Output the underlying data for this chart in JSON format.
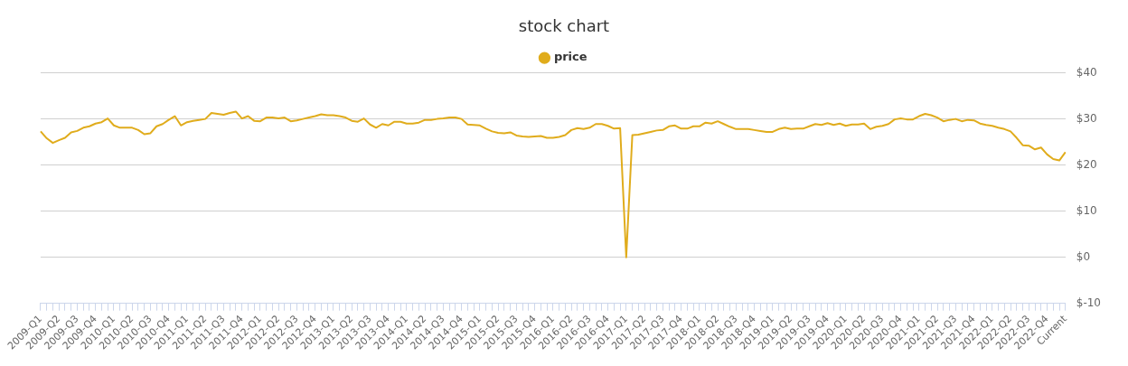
{
  "chart_data": {
    "type": "line",
    "title": "stock chart",
    "categories": [
      "2009-Q1",
      null,
      null,
      "2009-Q2",
      null,
      null,
      "2009-Q3",
      null,
      null,
      "2009-Q4",
      null,
      null,
      "2010-Q1",
      null,
      null,
      "2010-Q2",
      null,
      null,
      "2010-Q3",
      null,
      null,
      "2010-Q4",
      null,
      null,
      "2011-Q1",
      null,
      null,
      "2011-Q2",
      null,
      null,
      "2011-Q3",
      null,
      null,
      "2011-Q4",
      null,
      null,
      "2012-Q1",
      null,
      null,
      "2012-Q2",
      null,
      null,
      "2012-Q3",
      null,
      null,
      "2012-Q4",
      null,
      null,
      "2013-Q1",
      null,
      null,
      "2013-Q2",
      null,
      null,
      "2013-Q3",
      null,
      null,
      "2013-Q4",
      null,
      null,
      "2014-Q1",
      null,
      null,
      "2014-Q2",
      null,
      null,
      "2014-Q3",
      null,
      null,
      "2014-Q4",
      null,
      null,
      "2015-Q1",
      null,
      null,
      "2015-Q2",
      null,
      null,
      "2015-Q3",
      null,
      null,
      "2015-Q4",
      null,
      null,
      "2016-Q1",
      null,
      null,
      "2016-Q2",
      null,
      null,
      "2016-Q3",
      null,
      null,
      "2016-Q4",
      null,
      null,
      "2017-Q1",
      null,
      null,
      "2017-Q2",
      null,
      null,
      "2017-Q3",
      null,
      null,
      "2017-Q4",
      null,
      null,
      "2018-Q1",
      null,
      null,
      "2018-Q2",
      null,
      null,
      "2018-Q3",
      null,
      null,
      "2018-Q4",
      null,
      null,
      "2019-Q1",
      null,
      null,
      "2019-Q2",
      null,
      null,
      "2019-Q3",
      null,
      null,
      "2019-Q4",
      null,
      null,
      "2020-Q1",
      null,
      null,
      "2020-Q2",
      null,
      null,
      "2020-Q3",
      null,
      null,
      "2020-Q4",
      null,
      null,
      "2021-Q1",
      null,
      null,
      "2021-Q2",
      null,
      null,
      "2021-Q3",
      null,
      null,
      "2021-Q4",
      null,
      null,
      "2022-Q1",
      null,
      null,
      "2022-Q2",
      null,
      null,
      "2022-Q3",
      null,
      null,
      "2022-Q4",
      null,
      null,
      "Current"
    ],
    "series": [
      {
        "name": "price",
        "color": "#e0ac1c",
        "values": [
          27.3,
          25.8,
          24.8,
          25.4,
          25.9,
          27.1,
          27.4,
          28.1,
          28.4,
          29.0,
          29.3,
          30.1,
          28.6,
          28.1,
          28.1,
          28.1,
          27.6,
          26.7,
          26.9,
          28.4,
          28.9,
          29.8,
          30.6,
          28.6,
          29.3,
          29.6,
          29.8,
          30.0,
          31.3,
          31.1,
          30.9,
          31.3,
          31.6,
          30.1,
          30.6,
          29.6,
          29.5,
          30.3,
          30.3,
          30.1,
          30.3,
          29.5,
          29.7,
          30.0,
          30.3,
          30.6,
          31.0,
          30.8,
          30.8,
          30.6,
          30.3,
          29.6,
          29.4,
          30.1,
          28.8,
          28.1,
          28.9,
          28.6,
          29.4,
          29.4,
          29.0,
          29.0,
          29.2,
          29.8,
          29.8,
          30.0,
          30.1,
          30.3,
          30.3,
          30.0,
          28.8,
          28.7,
          28.6,
          27.9,
          27.3,
          27.0,
          26.9,
          27.1,
          26.4,
          26.2,
          26.1,
          26.2,
          26.3,
          25.9,
          25.9,
          26.1,
          26.5,
          27.6,
          28.0,
          27.8,
          28.1,
          28.9,
          28.9,
          28.5,
          27.9,
          28.0,
          0,
          26.5,
          26.6,
          26.9,
          27.2,
          27.5,
          27.6,
          28.4,
          28.6,
          27.9,
          27.9,
          28.4,
          28.4,
          29.2,
          29.0,
          29.5,
          28.9,
          28.3,
          27.8,
          27.8,
          27.8,
          27.6,
          27.4,
          27.2,
          27.2,
          27.8,
          28.1,
          27.8,
          27.9,
          27.9,
          28.4,
          28.9,
          28.7,
          29.1,
          28.7,
          29.0,
          28.5,
          28.8,
          28.8,
          29.0,
          27.8,
          28.3,
          28.5,
          28.9,
          29.9,
          30.1,
          29.9,
          29.9,
          30.6,
          31.1,
          30.8,
          30.3,
          29.5,
          29.8,
          30.0,
          29.5,
          29.8,
          29.7,
          29.0,
          28.7,
          28.5,
          28.1,
          27.8,
          27.3,
          25.9,
          24.3,
          24.2,
          23.4,
          23.8,
          22.3,
          21.3,
          21.0,
          22.8
        ]
      }
    ],
    "ylim": [
      -10,
      40
    ],
    "yticks": [
      {
        "value": -10,
        "label": "$-10"
      },
      {
        "value": 0,
        "label": "$0"
      },
      {
        "value": 10,
        "label": "$10"
      },
      {
        "value": 20,
        "label": "$20"
      },
      {
        "value": 30,
        "label": "$30"
      },
      {
        "value": 40,
        "label": "$40"
      }
    ],
    "grid": "y",
    "legend": "top",
    "marker": "none",
    "line_style": "solid"
  }
}
